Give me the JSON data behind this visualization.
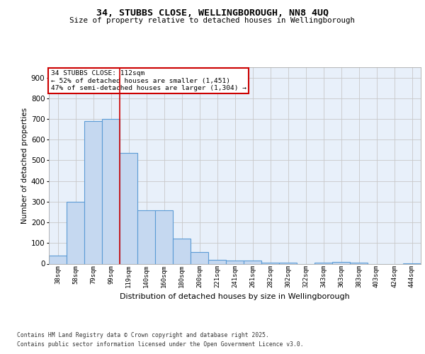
{
  "title_line1": "34, STUBBS CLOSE, WELLINGBOROUGH, NN8 4UQ",
  "title_line2": "Size of property relative to detached houses in Wellingborough",
  "xlabel": "Distribution of detached houses by size in Wellingborough",
  "ylabel": "Number of detached properties",
  "categories": [
    "38sqm",
    "58sqm",
    "79sqm",
    "99sqm",
    "119sqm",
    "140sqm",
    "160sqm",
    "180sqm",
    "200sqm",
    "221sqm",
    "241sqm",
    "261sqm",
    "282sqm",
    "302sqm",
    "322sqm",
    "343sqm",
    "363sqm",
    "383sqm",
    "403sqm",
    "424sqm",
    "444sqm"
  ],
  "values": [
    40,
    300,
    690,
    700,
    535,
    260,
    260,
    120,
    55,
    20,
    15,
    15,
    5,
    5,
    0,
    5,
    8,
    5,
    0,
    0,
    2
  ],
  "bar_color": "#c5d8f0",
  "bar_edge_color": "#5b9bd5",
  "bar_edge_width": 0.8,
  "grid_color": "#c8c8c8",
  "background_color": "#e8f0fa",
  "annotation_box_text": "34 STUBBS CLOSE: 112sqm\n← 52% of detached houses are smaller (1,451)\n47% of semi-detached houses are larger (1,304) →",
  "annotation_box_color": "#ffffff",
  "annotation_box_edge_color": "#cc0000",
  "vertical_line_color": "#cc0000",
  "vertical_line_x": 4.5,
  "ylim": [
    0,
    950
  ],
  "yticks": [
    0,
    100,
    200,
    300,
    400,
    500,
    600,
    700,
    800,
    900
  ],
  "footer_line1": "Contains HM Land Registry data © Crown copyright and database right 2025.",
  "footer_line2": "Contains public sector information licensed under the Open Government Licence v3.0."
}
